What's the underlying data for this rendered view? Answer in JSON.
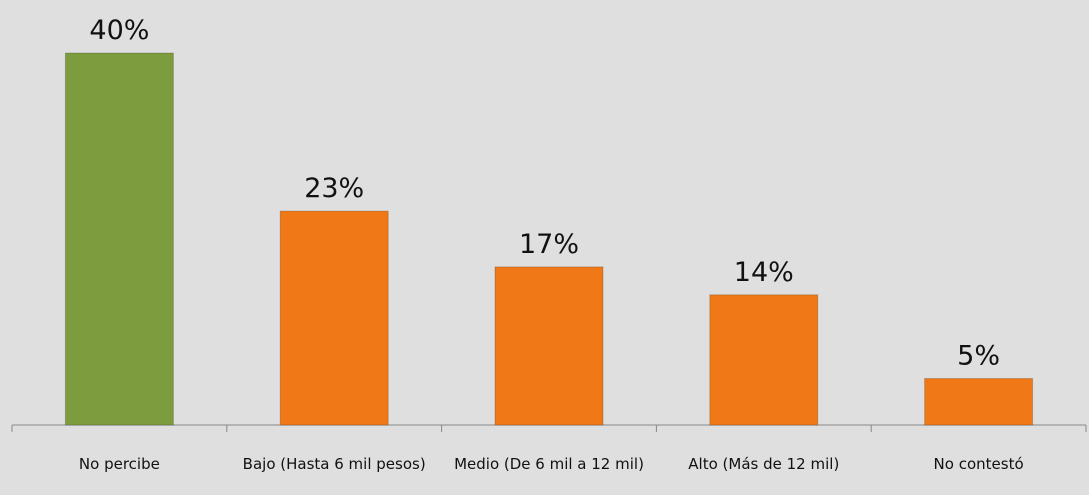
{
  "chart_data": {
    "type": "bar",
    "categories": [
      "No percibe",
      "Bajo (Hasta 6 mil pesos)",
      "Medio (De 6 mil a 12 mil)",
      "Alto (Más de 12 mil)",
      "No contestó"
    ],
    "values": [
      40,
      23,
      17,
      14,
      5
    ],
    "value_labels": [
      "40%",
      "23%",
      "17%",
      "14%",
      "5%"
    ],
    "colors": [
      "#7d9c3e",
      "#f07816",
      "#f07816",
      "#f07816",
      "#f07816"
    ]
  }
}
